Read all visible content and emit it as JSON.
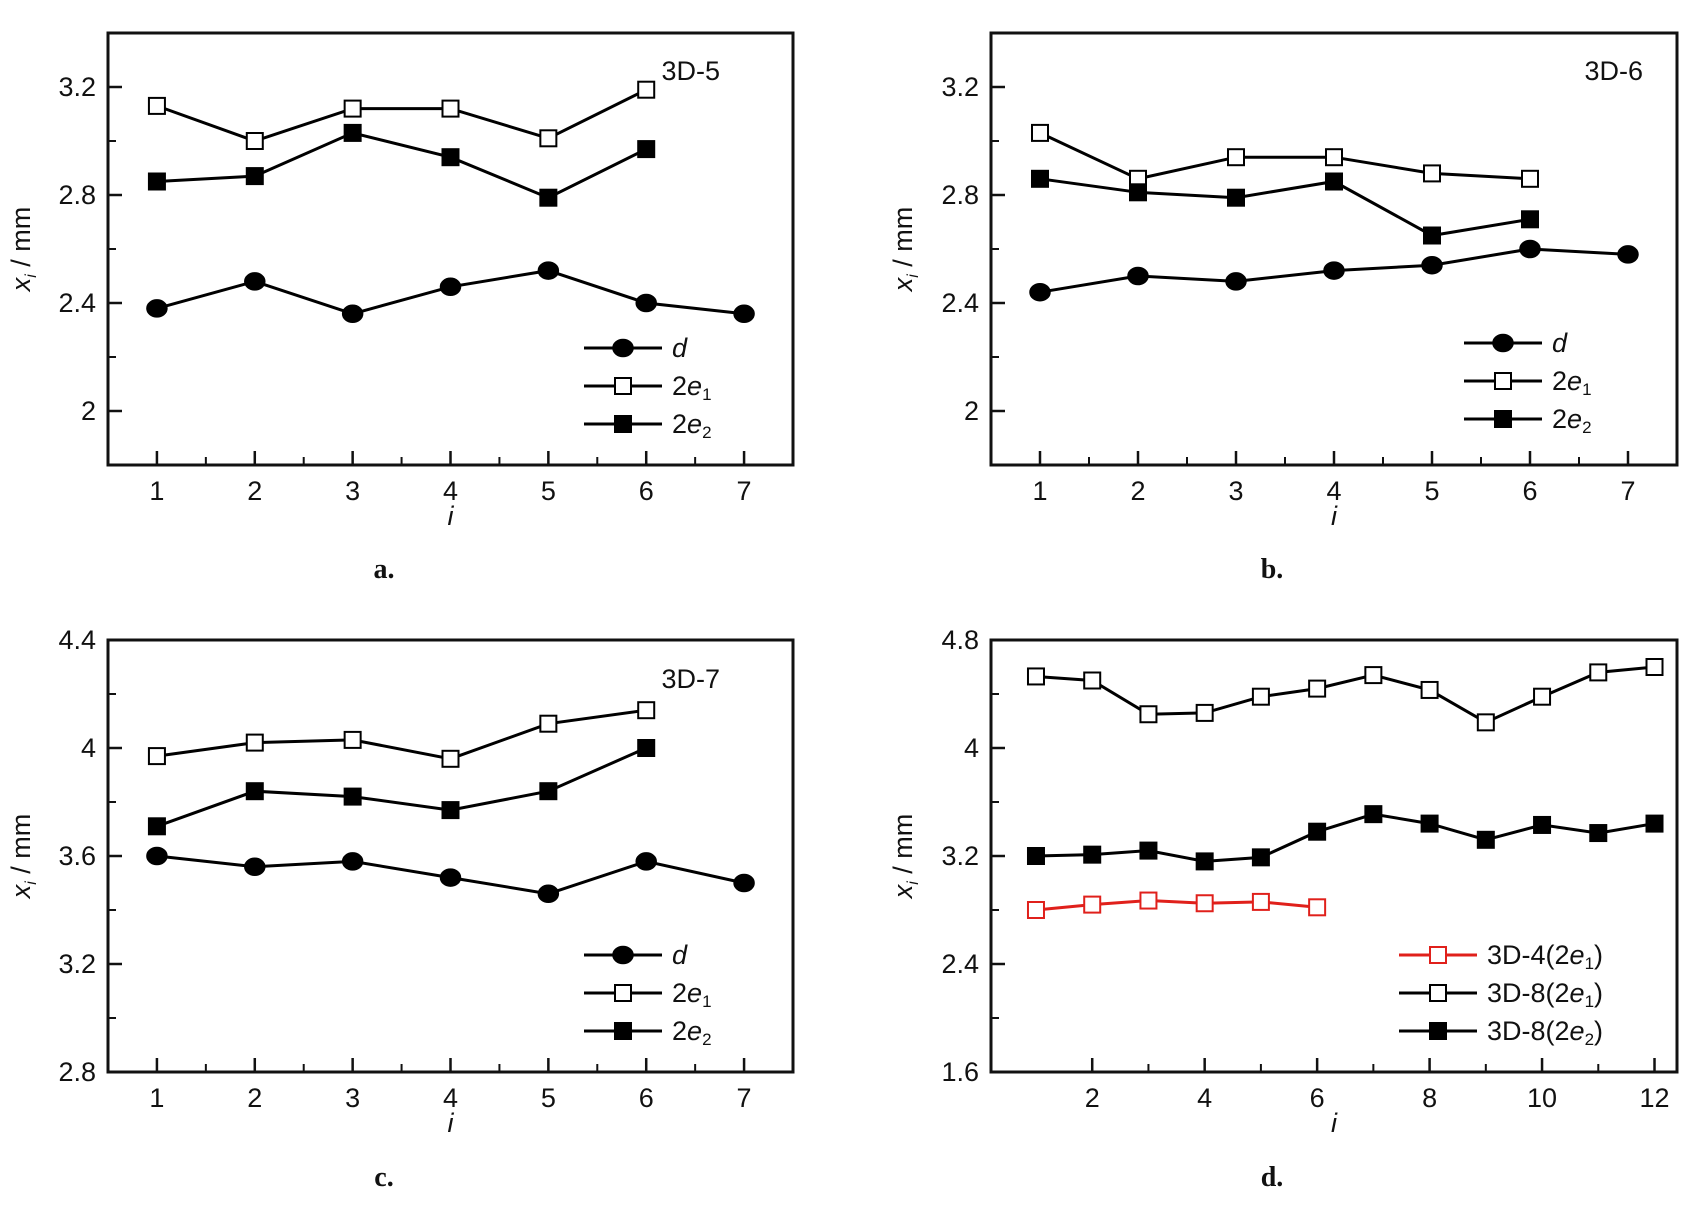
{
  "figure": {
    "panels": [
      {
        "caption": "a.",
        "tag": "3D-5",
        "xlabel": "i",
        "ylabel": "x_i / mm"
      },
      {
        "caption": "b.",
        "tag": "3D-6",
        "xlabel": "i",
        "ylabel": "x_i / mm"
      },
      {
        "caption": "c.",
        "tag": "3D-7",
        "xlabel": "i",
        "ylabel": "x_i / mm"
      },
      {
        "caption": "d.",
        "tag": "",
        "xlabel": "i",
        "ylabel": "x_i / mm"
      }
    ]
  },
  "chart_data": [
    {
      "type": "line",
      "title": "3D-5",
      "xlabel": "i",
      "ylabel": "x_i / mm",
      "xlim": [
        0.5,
        7.5
      ],
      "ylim": [
        1.8,
        3.4
      ],
      "xticks": [
        1,
        2,
        3,
        4,
        5,
        6,
        7
      ],
      "yticks": [
        2.0,
        2.4,
        2.8,
        3.2
      ],
      "legend_position": "bottom-right",
      "series": [
        {
          "name": "d",
          "marker": "filled-circle",
          "color": "#000000",
          "x": [
            1,
            2,
            3,
            4,
            5,
            6,
            7
          ],
          "values": [
            2.38,
            2.48,
            2.36,
            2.46,
            2.52,
            2.4,
            2.36
          ]
        },
        {
          "name": "2e1",
          "marker": "open-square",
          "color": "#000000",
          "x": [
            1,
            2,
            3,
            4,
            5,
            6
          ],
          "values": [
            3.13,
            3.0,
            3.12,
            3.12,
            3.01,
            3.19
          ]
        },
        {
          "name": "2e2",
          "marker": "filled-square",
          "color": "#000000",
          "x": [
            1,
            2,
            3,
            4,
            5,
            6
          ],
          "values": [
            2.85,
            2.87,
            3.03,
            2.94,
            2.79,
            2.97
          ]
        }
      ]
    },
    {
      "type": "line",
      "title": "3D-6",
      "xlabel": "i",
      "ylabel": "x_i / mm",
      "xlim": [
        0.5,
        7.5
      ],
      "ylim": [
        1.8,
        3.4
      ],
      "xticks": [
        1,
        2,
        3,
        4,
        5,
        6,
        7
      ],
      "yticks": [
        2.0,
        2.4,
        2.8,
        3.2
      ],
      "legend_position": "bottom-right",
      "series": [
        {
          "name": "d",
          "marker": "filled-circle",
          "color": "#000000",
          "x": [
            1,
            2,
            3,
            4,
            5,
            6,
            7
          ],
          "values": [
            2.44,
            2.5,
            2.48,
            2.52,
            2.54,
            2.6,
            2.58
          ]
        },
        {
          "name": "2e1",
          "marker": "open-square",
          "color": "#000000",
          "x": [
            1,
            2,
            3,
            4,
            5,
            6
          ],
          "values": [
            3.03,
            2.86,
            2.94,
            2.94,
            2.88,
            2.86
          ]
        },
        {
          "name": "2e2",
          "marker": "filled-square",
          "color": "#000000",
          "x": [
            1,
            2,
            3,
            4,
            5,
            6
          ],
          "values": [
            2.86,
            2.81,
            2.79,
            2.85,
            2.65,
            2.71
          ]
        }
      ]
    },
    {
      "type": "line",
      "title": "3D-7",
      "xlabel": "i",
      "ylabel": "x_i / mm",
      "xlim": [
        0.5,
        7.5
      ],
      "ylim": [
        2.8,
        4.4
      ],
      "xticks": [
        1,
        2,
        3,
        4,
        5,
        6,
        7
      ],
      "yticks": [
        2.8,
        3.2,
        3.6,
        4.0,
        4.4
      ],
      "legend_position": "bottom-right",
      "series": [
        {
          "name": "d",
          "marker": "filled-circle",
          "color": "#000000",
          "x": [
            1,
            2,
            3,
            4,
            5,
            6,
            7
          ],
          "values": [
            3.6,
            3.56,
            3.58,
            3.52,
            3.46,
            3.58,
            3.5
          ]
        },
        {
          "name": "2e1",
          "marker": "open-square",
          "color": "#000000",
          "x": [
            1,
            2,
            3,
            4,
            5,
            6
          ],
          "values": [
            3.97,
            4.02,
            4.03,
            3.96,
            4.09,
            4.14
          ]
        },
        {
          "name": "2e2",
          "marker": "filled-square",
          "color": "#000000",
          "x": [
            1,
            2,
            3,
            4,
            5,
            6
          ],
          "values": [
            3.71,
            3.84,
            3.82,
            3.77,
            3.84,
            4.0
          ]
        }
      ]
    },
    {
      "type": "line",
      "title": "",
      "xlabel": "i",
      "ylabel": "x_i / mm",
      "xlim": [
        0.2,
        12.4
      ],
      "ylim": [
        1.6,
        4.8
      ],
      "xticks": [
        2,
        4,
        6,
        8,
        10,
        12
      ],
      "yticks": [
        1.6,
        2.4,
        3.2,
        4.0,
        4.8
      ],
      "legend_position": "bottom-right",
      "series": [
        {
          "name": "3D-4(2e1)",
          "marker": "open-square",
          "color": "#e0201b",
          "x": [
            1,
            2,
            3,
            4,
            5,
            6
          ],
          "values": [
            2.8,
            2.84,
            2.87,
            2.85,
            2.86,
            2.82
          ]
        },
        {
          "name": "3D-8(2e1)",
          "marker": "open-square",
          "color": "#000000",
          "x": [
            1,
            2,
            3,
            4,
            5,
            6,
            7,
            8,
            9,
            10,
            11,
            12
          ],
          "values": [
            4.53,
            4.5,
            4.25,
            4.26,
            4.38,
            4.44,
            4.54,
            4.43,
            4.19,
            4.38,
            4.56,
            4.6
          ]
        },
        {
          "name": "3D-8(2e2)",
          "marker": "filled-square",
          "color": "#000000",
          "x": [
            1,
            2,
            3,
            4,
            5,
            6,
            7,
            8,
            9,
            10,
            11,
            12
          ],
          "values": [
            3.2,
            3.21,
            3.24,
            3.16,
            3.19,
            3.38,
            3.51,
            3.44,
            3.32,
            3.43,
            3.37,
            3.44
          ]
        }
      ]
    }
  ]
}
